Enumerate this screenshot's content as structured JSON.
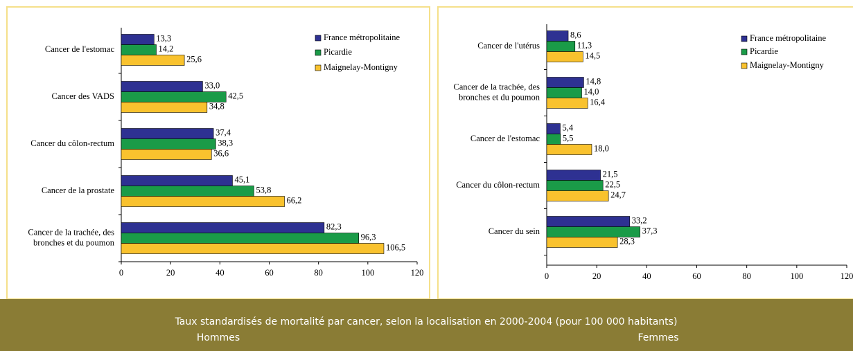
{
  "caption": "Taux standardisés de mortalité par cancer, selon la localisation en 2000-2004 (pour 100 000 habitants)",
  "chart_data": [
    {
      "type": "bar",
      "orientation": "horizontal",
      "title": "Hommes",
      "categories": [
        "Cancer de l'estomac",
        "Cancer des VADS",
        "Cancer du côlon-rectum",
        "Cancer de la prostate",
        "Cancer de la trachée, des\nbronches et du poumon"
      ],
      "series": [
        {
          "name": "France métropolitaine",
          "color": "#2e3192",
          "values": [
            13.3,
            33.0,
            37.4,
            45.1,
            82.3
          ],
          "value_labels": [
            "13,3",
            "33,0",
            "37,4",
            "45,1",
            "82,3"
          ]
        },
        {
          "name": "Picardie",
          "color": "#1a9b48",
          "values": [
            14.2,
            42.5,
            38.3,
            53.8,
            96.3
          ],
          "value_labels": [
            "14,2",
            "42,5",
            "38,3",
            "53,8",
            "96,3"
          ]
        },
        {
          "name": "Maignelay-Montigny",
          "color": "#f9c22e",
          "values": [
            25.6,
            34.8,
            36.6,
            66.2,
            106.5
          ],
          "value_labels": [
            "25,6",
            "34,8",
            "36,6",
            "66,2",
            "106,5"
          ]
        }
      ],
      "xlim": [
        0,
        120
      ],
      "xticks": [
        0,
        20,
        40,
        60,
        80,
        100,
        120
      ],
      "legend": "upper right"
    },
    {
      "type": "bar",
      "orientation": "horizontal",
      "title": "Femmes",
      "categories": [
        "Cancer de l'utérus",
        "Cancer de la trachée, des\nbronches et du poumon",
        "Cancer de l'estomac",
        "Cancer du côlon-rectum",
        "Cancer du sein"
      ],
      "series": [
        {
          "name": "France métropolitaine",
          "color": "#2e3192",
          "values": [
            8.6,
            14.8,
            5.4,
            21.5,
            33.2
          ],
          "value_labels": [
            "8,6",
            "14,8",
            "5,4",
            "21,5",
            "33,2"
          ]
        },
        {
          "name": "Picardie",
          "color": "#1a9b48",
          "values": [
            11.3,
            14.0,
            5.5,
            22.5,
            37.3
          ],
          "value_labels": [
            "11,3",
            "14,0",
            "5,5",
            "22,5",
            "37,3"
          ]
        },
        {
          "name": "Maignelay-Montigny",
          "color": "#f9c22e",
          "values": [
            14.5,
            16.4,
            18.0,
            24.7,
            28.3
          ],
          "value_labels": [
            "14,5",
            "16,4",
            "18,0",
            "24,7",
            "28,3"
          ]
        }
      ],
      "xlim": [
        0,
        120
      ],
      "xticks": [
        0,
        20,
        40,
        60,
        80,
        100,
        120
      ],
      "legend": "upper right"
    }
  ]
}
